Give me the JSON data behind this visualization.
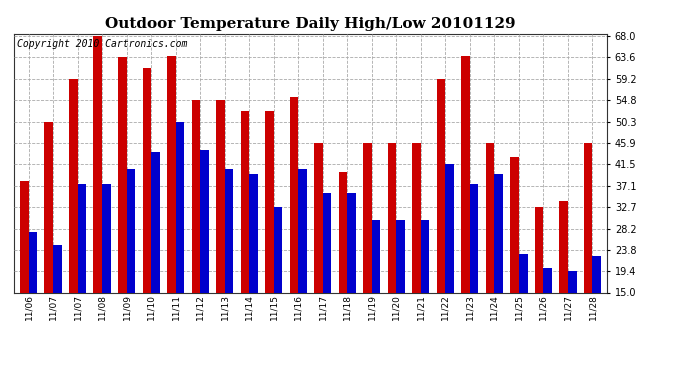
{
  "title": "Outdoor Temperature Daily High/Low 20101129",
  "copyright": "Copyright 2010 Cartronics.com",
  "categories": [
    "11/06",
    "11/07",
    "11/07",
    "11/08",
    "11/09",
    "11/10",
    "11/11",
    "11/12",
    "11/13",
    "11/14",
    "11/15",
    "11/16",
    "11/17",
    "11/18",
    "11/19",
    "11/20",
    "11/21",
    "11/22",
    "11/23",
    "11/24",
    "11/25",
    "11/26",
    "11/27",
    "11/28"
  ],
  "high_values": [
    38.0,
    50.3,
    59.2,
    68.0,
    63.6,
    61.5,
    64.0,
    54.8,
    54.8,
    52.5,
    52.5,
    55.5,
    45.9,
    40.0,
    45.9,
    45.9,
    45.9,
    59.2,
    64.0,
    46.0,
    43.0,
    32.7,
    34.0,
    46.0
  ],
  "low_values": [
    27.5,
    24.8,
    37.4,
    37.4,
    40.5,
    44.0,
    50.3,
    44.5,
    40.5,
    39.5,
    32.7,
    40.5,
    35.5,
    35.5,
    30.0,
    30.0,
    30.0,
    41.5,
    37.5,
    39.5,
    23.0,
    20.0,
    19.5,
    22.5
  ],
  "yticks": [
    15.0,
    19.4,
    23.8,
    28.2,
    32.7,
    37.1,
    41.5,
    45.9,
    50.3,
    54.8,
    59.2,
    63.6,
    68.0
  ],
  "ylim": [
    15.0,
    68.5
  ],
  "high_color": "#cc0000",
  "low_color": "#0000cc",
  "bg_color": "#ffffff",
  "grid_color": "#aaaaaa",
  "title_fontsize": 11,
  "copyright_fontsize": 7,
  "bar_width": 0.35
}
